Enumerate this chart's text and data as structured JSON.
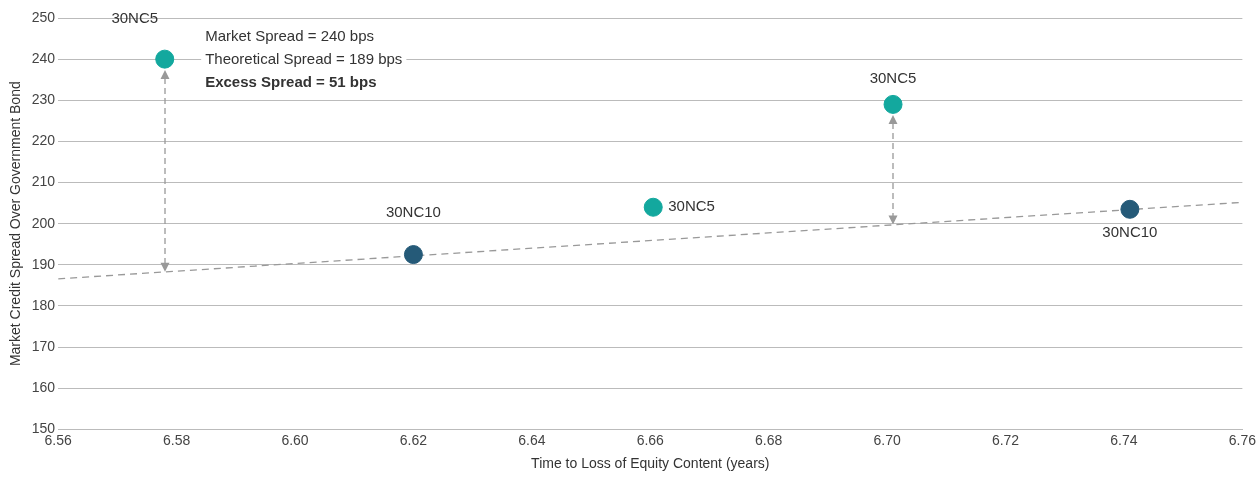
{
  "chart_data": {
    "type": "scatter",
    "xlabel": "Time to Loss of Equity Content (years)",
    "ylabel": "Market Credit Spread Over Government Bond",
    "xlim": [
      6.56,
      6.76
    ],
    "xticks": [
      {
        "value": 6.56,
        "label": "6.56"
      },
      {
        "value": 6.58,
        "label": "6.58"
      },
      {
        "value": 6.6,
        "label": "6.60"
      },
      {
        "value": 6.62,
        "label": "6.62"
      },
      {
        "value": 6.64,
        "label": "6.64"
      },
      {
        "value": 6.66,
        "label": "6.66"
      },
      {
        "value": 6.68,
        "label": "6.68"
      },
      {
        "value": 6.7,
        "label": "6.70"
      },
      {
        "value": 6.72,
        "label": "6.72"
      },
      {
        "value": 6.74,
        "label": "6.74"
      },
      {
        "value": 6.76,
        "label": "6.76"
      }
    ],
    "ylim": [
      150,
      250
    ],
    "yticks": [
      150,
      160,
      170,
      180,
      190,
      200,
      210,
      220,
      230,
      240,
      250
    ],
    "grid": "y",
    "legend": false,
    "marker": "circle",
    "series": [
      {
        "color": "#13a89e",
        "x": [
          6.578,
          6.6605,
          6.701
        ],
        "values": [
          240,
          204,
          229
        ]
      },
      {
        "color": "#255a78",
        "x": [
          6.62,
          6.741
        ],
        "values": [
          192.5,
          203.5
        ]
      },
      {
        "type": "line",
        "marker": "none",
        "color": "#999999",
        "line_style": "dashed",
        "x": [
          6.56,
          6.76
        ],
        "values": [
          186.6,
          205.2
        ]
      }
    ],
    "annotations": [
      {
        "text": "30NC5",
        "x": 6.578,
        "y": 240
      },
      {
        "text": "30NC10",
        "x": 6.62,
        "y": 192.5
      },
      {
        "text": "30NC5",
        "x": 6.6605,
        "y": 204
      },
      {
        "text": "30NC5",
        "x": 6.701,
        "y": 229
      },
      {
        "text": "30NC10",
        "x": 6.741,
        "y": 203.5
      },
      "Market Spread = 240 bps",
      "Theoretical Spread = 189 bps",
      "Excess Spread = 51 bps"
    ]
  }
}
